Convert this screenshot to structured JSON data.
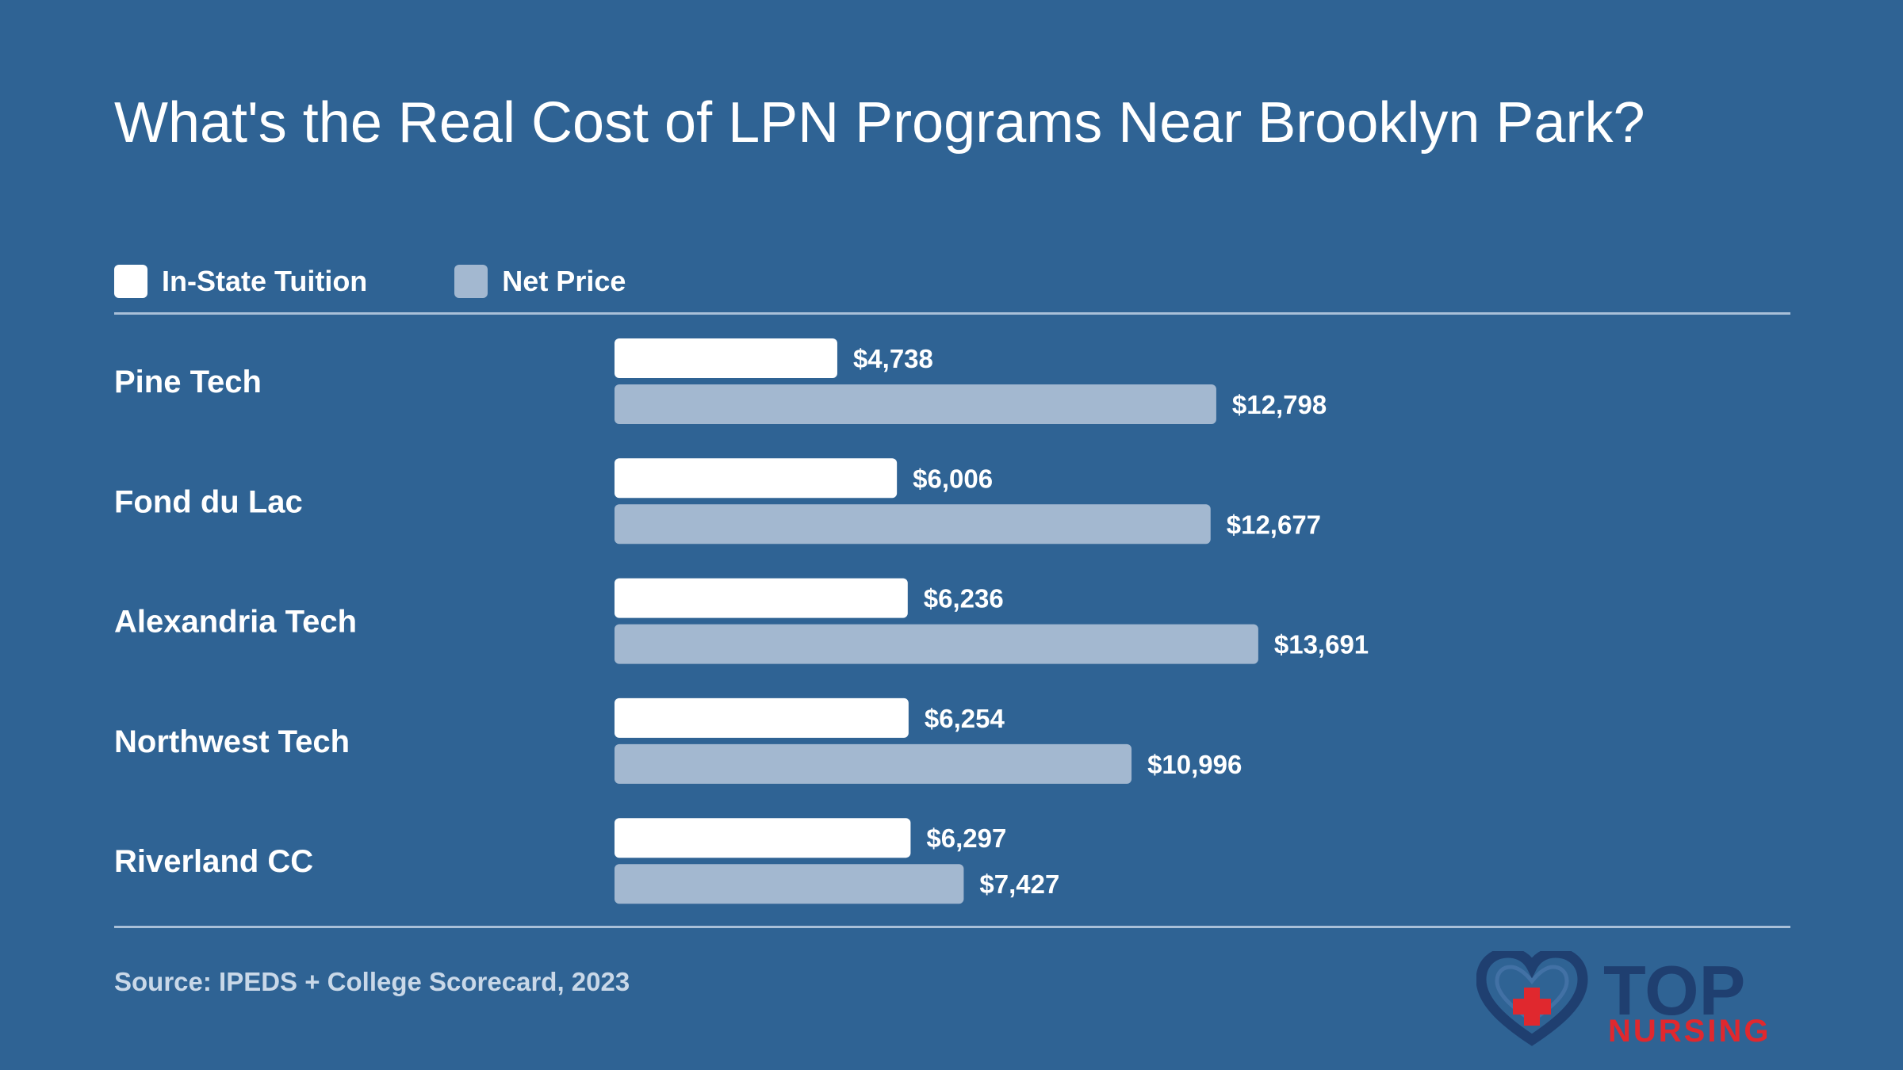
{
  "chart_data": {
    "type": "bar",
    "orientation": "horizontal",
    "title": "What's the Real Cost of LPN Programs Near Brooklyn Park?",
    "categories": [
      "Pine Tech",
      "Fond du Lac",
      "Alexandria Tech",
      "Northwest Tech",
      "Riverland CC"
    ],
    "series": [
      {
        "name": "In-State Tuition",
        "color": "#ffffff",
        "values": [
          4738,
          6006,
          6236,
          6254,
          6297
        ],
        "labels": [
          "$4,738",
          "$6,006",
          "$6,236",
          "$6,254",
          "$6,297"
        ]
      },
      {
        "name": "Net Price",
        "color": "#a3b8d0",
        "values": [
          12798,
          12677,
          13691,
          10996,
          7427
        ],
        "labels": [
          "$12,798",
          "$12,677",
          "$13,691",
          "$10,996",
          "$7,427"
        ]
      }
    ],
    "legend_position": "top-left",
    "grid": false
  },
  "source": "Source: IPEDS + College Scorecard, 2023",
  "logo": {
    "text_top": "TOP",
    "text_bottom": "NURSING",
    "color_primary": "#1f3f70",
    "color_accent": "#e0282e",
    "icon": "heart-cross-icon"
  },
  "colors": {
    "background": "#2f6394",
    "rule": "#a9c0d8"
  }
}
